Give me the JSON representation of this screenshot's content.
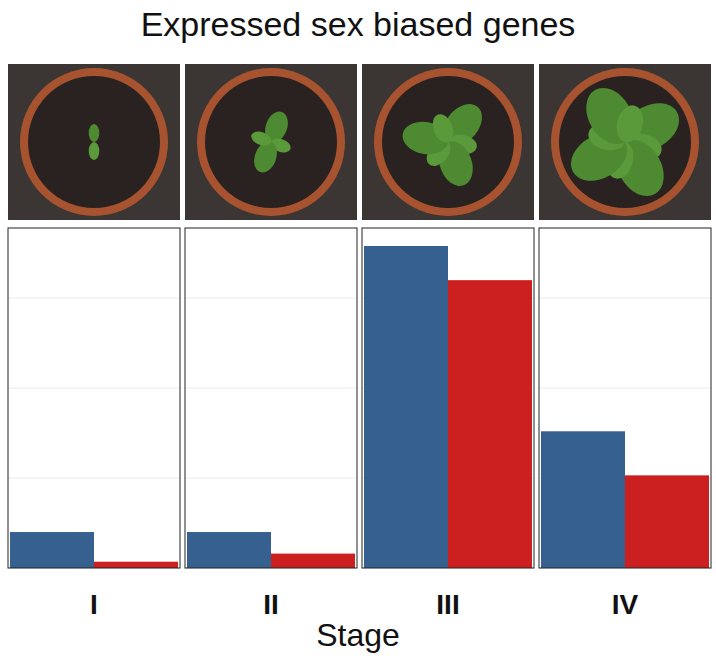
{
  "chart_data": {
    "type": "bar",
    "title": "Expressed sex biased genes",
    "categories": [
      "I",
      "II",
      "III",
      "IV"
    ],
    "x_label": "Stage",
    "series": [
      {
        "color": "#35608f",
        "values": [
          40,
          40,
          358,
          152
        ]
      },
      {
        "color": "#cc1f1f",
        "values": [
          7,
          16,
          320,
          103
        ]
      }
    ],
    "ylim": [
      0,
      378
    ],
    "yticks": [
      0,
      100,
      200,
      300
    ],
    "grid": true,
    "tick_labels": false
  }
}
